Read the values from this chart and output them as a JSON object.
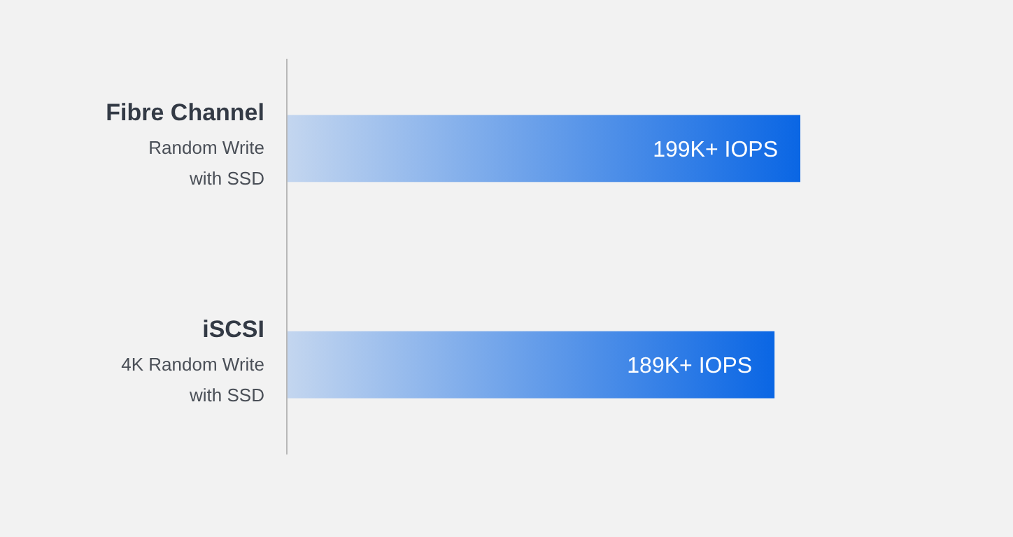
{
  "chart_data": {
    "type": "bar",
    "orientation": "horizontal",
    "categories": [
      "Fibre Channel\nRandom Write\nwith SSD",
      "iSCSI\n4K Random Write\nwith SSD"
    ],
    "values": [
      199,
      189
    ],
    "value_labels": [
      "199K+ IOPS",
      "189K+ IOPS"
    ],
    "color": "#0a66e4"
  }
}
